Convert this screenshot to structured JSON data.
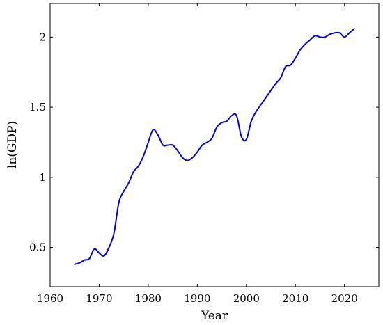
{
  "chart_data": {
    "type": "line",
    "title": "",
    "xlabel": "Year",
    "ylabel": "ln(GDP)",
    "xlim": [
      1960,
      2027
    ],
    "ylim": [
      0.22,
      2.24
    ],
    "xticks": [
      1960,
      1970,
      1980,
      1990,
      2000,
      2010,
      2020
    ],
    "yticks": [
      0.5,
      1,
      1.5,
      2
    ],
    "xtick_labels": [
      "1960",
      "1970",
      "1980",
      "1990",
      "2000",
      "2010",
      "2020"
    ],
    "ytick_labels": [
      "0.5",
      "1",
      "1.5",
      "2"
    ],
    "grid": false,
    "line_color": "#0000dd",
    "series": [
      {
        "x": [
          1965,
          1966,
          1967,
          1968,
          1969,
          1970,
          1971,
          1972,
          1973,
          1974,
          1975,
          1976,
          1977,
          1978,
          1979,
          1980,
          1981,
          1982,
          1983,
          1984,
          1985,
          1986,
          1987,
          1988,
          1989,
          1990,
          1991,
          1992,
          1993,
          1994,
          1995,
          1996,
          1997,
          1998,
          1999,
          2000,
          2001,
          2002,
          2003,
          2004,
          2005,
          2006,
          2007,
          2008,
          2009,
          2010,
          2011,
          2012,
          2013,
          2014,
          2015,
          2016,
          2017,
          2018,
          2019,
          2020,
          2021,
          2022
        ],
        "y": [
          0.38,
          0.39,
          0.41,
          0.42,
          0.49,
          0.46,
          0.44,
          0.5,
          0.6,
          0.82,
          0.9,
          0.96,
          1.04,
          1.08,
          1.15,
          1.25,
          1.34,
          1.3,
          1.23,
          1.23,
          1.23,
          1.19,
          1.14,
          1.12,
          1.14,
          1.18,
          1.23,
          1.25,
          1.28,
          1.36,
          1.39,
          1.4,
          1.44,
          1.44,
          1.29,
          1.27,
          1.4,
          1.47,
          1.52,
          1.57,
          1.62,
          1.67,
          1.71,
          1.79,
          1.8,
          1.85,
          1.91,
          1.95,
          1.98,
          2.01,
          2.0,
          2.0,
          2.02,
          2.03,
          2.03,
          2.0,
          2.03,
          2.06
        ]
      }
    ]
  }
}
